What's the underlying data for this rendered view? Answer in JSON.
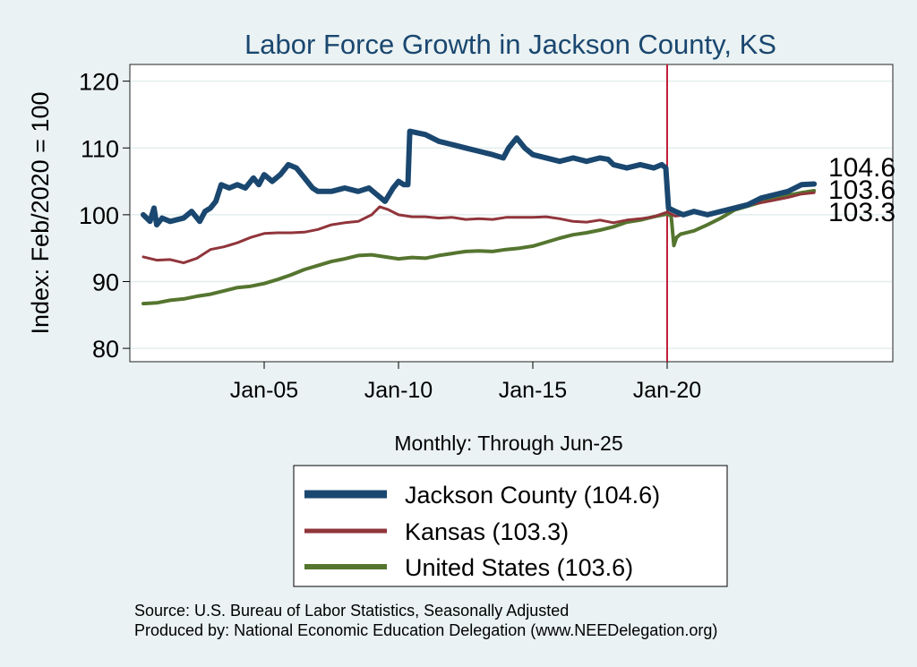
{
  "chart_data": {
    "type": "line",
    "title": "Labor Force Growth in Jackson  County, KS",
    "xlabel": "Monthly: Through Jun-25",
    "ylabel": "Index: Feb/2020 = 100",
    "xlim": [
      2000.0,
      2028.4
    ],
    "ylim": [
      78.0,
      122.5
    ],
    "yticks": [
      80,
      90,
      100,
      110,
      120
    ],
    "xticks": [
      {
        "x": 2005.0,
        "label": "Jan-05"
      },
      {
        "x": 2010.0,
        "label": "Jan-10"
      },
      {
        "x": 2015.0,
        "label": "Jan-15"
      },
      {
        "x": 2020.0,
        "label": "Jan-20"
      }
    ],
    "grid": "horizontal",
    "vline": {
      "x": 2020.0,
      "color": "#c0203a"
    },
    "legend": {
      "position": "bottom",
      "entries": [
        "Jackson  County (104.6)",
        "Kansas (103.3)",
        "United States (103.6)"
      ]
    },
    "end_labels": [
      "104.6",
      "103.6",
      "103.3"
    ],
    "series": [
      {
        "name": "Jackson  County",
        "color": "#1a476f",
        "width": 6,
        "points": [
          [
            2000.5,
            100
          ],
          [
            2000.75,
            99
          ],
          [
            2000.9,
            101
          ],
          [
            2001.0,
            98.5
          ],
          [
            2001.2,
            99.5
          ],
          [
            2001.5,
            99
          ],
          [
            2002.0,
            99.5
          ],
          [
            2002.3,
            100.5
          ],
          [
            2002.6,
            99
          ],
          [
            2002.8,
            100.5
          ],
          [
            2003.0,
            101
          ],
          [
            2003.2,
            102
          ],
          [
            2003.4,
            104.5
          ],
          [
            2003.7,
            104
          ],
          [
            2004.0,
            104.5
          ],
          [
            2004.3,
            104
          ],
          [
            2004.6,
            105.5
          ],
          [
            2004.8,
            104.5
          ],
          [
            2005.0,
            106
          ],
          [
            2005.3,
            105
          ],
          [
            2005.6,
            106
          ],
          [
            2005.9,
            107.5
          ],
          [
            2006.2,
            107
          ],
          [
            2006.5,
            105.5
          ],
          [
            2006.8,
            104
          ],
          [
            2007.0,
            103.5
          ],
          [
            2007.5,
            103.5
          ],
          [
            2008.0,
            104
          ],
          [
            2008.5,
            103.5
          ],
          [
            2008.9,
            104
          ],
          [
            2009.2,
            103
          ],
          [
            2009.5,
            102
          ],
          [
            2009.8,
            104
          ],
          [
            2010.0,
            105
          ],
          [
            2010.2,
            104.5
          ],
          [
            2010.35,
            104.5
          ],
          [
            2010.42,
            112.5
          ],
          [
            2011.0,
            112
          ],
          [
            2011.5,
            111
          ],
          [
            2012.0,
            110.5
          ],
          [
            2012.5,
            110
          ],
          [
            2013.0,
            109.5
          ],
          [
            2013.5,
            109
          ],
          [
            2013.9,
            108.5
          ],
          [
            2014.1,
            110
          ],
          [
            2014.4,
            111.5
          ],
          [
            2014.7,
            110
          ],
          [
            2015.0,
            109
          ],
          [
            2015.5,
            108.5
          ],
          [
            2016.0,
            108
          ],
          [
            2016.5,
            108.5
          ],
          [
            2017.0,
            108
          ],
          [
            2017.5,
            108.5
          ],
          [
            2017.8,
            108.3
          ],
          [
            2018.0,
            107.5
          ],
          [
            2018.5,
            107
          ],
          [
            2019.0,
            107.5
          ],
          [
            2019.5,
            107
          ],
          [
            2019.8,
            107.5
          ],
          [
            2019.95,
            107
          ],
          [
            2020.05,
            101
          ],
          [
            2020.3,
            100.5
          ],
          [
            2020.6,
            100
          ],
          [
            2021.0,
            100.5
          ],
          [
            2021.5,
            100
          ],
          [
            2022.0,
            100.5
          ],
          [
            2022.5,
            101
          ],
          [
            2023.0,
            101.5
          ],
          [
            2023.5,
            102.5
          ],
          [
            2024.0,
            103
          ],
          [
            2024.5,
            103.5
          ],
          [
            2025.0,
            104.5
          ],
          [
            2025.47,
            104.6
          ]
        ]
      },
      {
        "name": "Kansas",
        "color": "#90353b",
        "width": 3,
        "points": [
          [
            2000.5,
            93.7
          ],
          [
            2001.0,
            93.2
          ],
          [
            2001.5,
            93.3
          ],
          [
            2002.0,
            92.8
          ],
          [
            2002.5,
            93.5
          ],
          [
            2003.0,
            94.8
          ],
          [
            2003.5,
            95.2
          ],
          [
            2004.0,
            95.8
          ],
          [
            2004.5,
            96.6
          ],
          [
            2005.0,
            97.2
          ],
          [
            2005.5,
            97.3
          ],
          [
            2006.0,
            97.3
          ],
          [
            2006.5,
            97.4
          ],
          [
            2007.0,
            97.8
          ],
          [
            2007.5,
            98.5
          ],
          [
            2008.0,
            98.8
          ],
          [
            2008.5,
            99.0
          ],
          [
            2009.0,
            100.0
          ],
          [
            2009.3,
            101.2
          ],
          [
            2009.6,
            100.8
          ],
          [
            2010.0,
            100.0
          ],
          [
            2010.5,
            99.7
          ],
          [
            2011.0,
            99.7
          ],
          [
            2011.5,
            99.5
          ],
          [
            2012.0,
            99.6
          ],
          [
            2012.5,
            99.3
          ],
          [
            2013.0,
            99.4
          ],
          [
            2013.5,
            99.3
          ],
          [
            2014.0,
            99.6
          ],
          [
            2014.5,
            99.6
          ],
          [
            2015.0,
            99.6
          ],
          [
            2015.5,
            99.7
          ],
          [
            2016.0,
            99.4
          ],
          [
            2016.5,
            99.0
          ],
          [
            2017.0,
            98.9
          ],
          [
            2017.5,
            99.2
          ],
          [
            2018.0,
            98.8
          ],
          [
            2018.5,
            99.2
          ],
          [
            2019.0,
            99.4
          ],
          [
            2019.5,
            99.7
          ],
          [
            2020.0,
            100.4
          ],
          [
            2020.3,
            99.8
          ],
          [
            2020.7,
            100.0
          ],
          [
            2021.0,
            100.4
          ],
          [
            2021.5,
            100.2
          ],
          [
            2022.0,
            100.6
          ],
          [
            2022.5,
            101.0
          ],
          [
            2023.0,
            101.5
          ],
          [
            2023.5,
            101.8
          ],
          [
            2024.0,
            102.2
          ],
          [
            2024.5,
            102.6
          ],
          [
            2025.0,
            103.1
          ],
          [
            2025.47,
            103.3
          ]
        ]
      },
      {
        "name": "United States",
        "color": "#55752f",
        "width": 4,
        "points": [
          [
            2000.5,
            86.7
          ],
          [
            2001.0,
            86.8
          ],
          [
            2001.5,
            87.2
          ],
          [
            2002.0,
            87.4
          ],
          [
            2002.5,
            87.8
          ],
          [
            2003.0,
            88.1
          ],
          [
            2003.5,
            88.6
          ],
          [
            2004.0,
            89.1
          ],
          [
            2004.5,
            89.3
          ],
          [
            2005.0,
            89.7
          ],
          [
            2005.5,
            90.3
          ],
          [
            2006.0,
            91.0
          ],
          [
            2006.5,
            91.8
          ],
          [
            2007.0,
            92.4
          ],
          [
            2007.5,
            93.0
          ],
          [
            2008.0,
            93.4
          ],
          [
            2008.5,
            93.9
          ],
          [
            2009.0,
            94.0
          ],
          [
            2009.5,
            93.7
          ],
          [
            2010.0,
            93.4
          ],
          [
            2010.5,
            93.6
          ],
          [
            2011.0,
            93.5
          ],
          [
            2011.5,
            93.9
          ],
          [
            2012.0,
            94.2
          ],
          [
            2012.5,
            94.5
          ],
          [
            2013.0,
            94.6
          ],
          [
            2013.5,
            94.5
          ],
          [
            2014.0,
            94.8
          ],
          [
            2014.5,
            95.0
          ],
          [
            2015.0,
            95.3
          ],
          [
            2015.5,
            95.9
          ],
          [
            2016.0,
            96.5
          ],
          [
            2016.5,
            97.0
          ],
          [
            2017.0,
            97.3
          ],
          [
            2017.5,
            97.7
          ],
          [
            2018.0,
            98.2
          ],
          [
            2018.5,
            98.9
          ],
          [
            2019.0,
            99.2
          ],
          [
            2019.5,
            99.7
          ],
          [
            2020.0,
            100.1
          ],
          [
            2020.15,
            99.8
          ],
          [
            2020.25,
            95.4
          ],
          [
            2020.35,
            96.6
          ],
          [
            2020.5,
            97.1
          ],
          [
            2021.0,
            97.6
          ],
          [
            2021.5,
            98.5
          ],
          [
            2022.0,
            99.5
          ],
          [
            2022.5,
            100.7
          ],
          [
            2023.0,
            101.3
          ],
          [
            2023.5,
            101.9
          ],
          [
            2024.0,
            102.4
          ],
          [
            2024.5,
            102.9
          ],
          [
            2025.0,
            103.3
          ],
          [
            2025.47,
            103.6
          ]
        ]
      }
    ]
  },
  "footer": {
    "source": "Source: U.S. Bureau of Labor Statistics, Seasonally Adjusted",
    "produced": "Produced by: National Economic Education Delegation (www.NEEDelegation.org)"
  }
}
